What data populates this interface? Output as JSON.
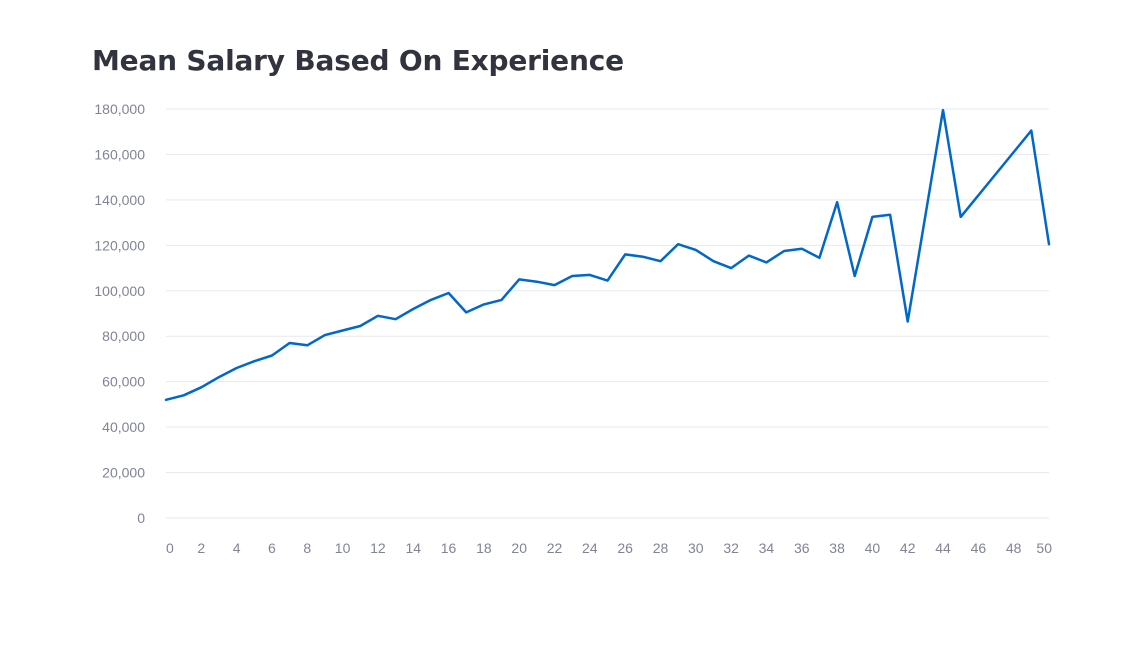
{
  "chart_data": {
    "type": "line",
    "title": "Mean Salary Based On Experience",
    "xlabel": "",
    "ylabel": "",
    "xlim": [
      0,
      50
    ],
    "ylim": [
      0,
      180000
    ],
    "grid": true,
    "legend": "none",
    "x_ticks": [
      0,
      2,
      4,
      6,
      8,
      10,
      12,
      14,
      16,
      18,
      20,
      22,
      24,
      26,
      28,
      30,
      32,
      34,
      36,
      38,
      40,
      42,
      44,
      46,
      48,
      50
    ],
    "y_ticks": [
      0,
      20000,
      40000,
      60000,
      80000,
      100000,
      120000,
      140000,
      160000,
      180000
    ],
    "y_tick_labels": [
      "0",
      "20,000",
      "40,000",
      "60,000",
      "80,000",
      "100,000",
      "120,000",
      "140,000",
      "160,000",
      "180,000"
    ],
    "series": [
      {
        "color": "#0068c9",
        "x": [
          0,
          1,
          2,
          3,
          4,
          5,
          6,
          7,
          8,
          9,
          10,
          11,
          12,
          13,
          14,
          15,
          16,
          17,
          18,
          19,
          20,
          21,
          22,
          23,
          24,
          25,
          26,
          27,
          28,
          29,
          30,
          31,
          32,
          33,
          34,
          35,
          36,
          37,
          38,
          39,
          40,
          41,
          42,
          44,
          45,
          49,
          50
        ],
        "values": [
          52000,
          54000,
          57500,
          62000,
          66000,
          69000,
          71500,
          77000,
          76000,
          80500,
          82500,
          84500,
          89000,
          87500,
          92000,
          96000,
          99000,
          90500,
          94000,
          96000,
          105000,
          104000,
          102500,
          106500,
          107000,
          104500,
          116000,
          115000,
          113000,
          120500,
          118000,
          113000,
          110000,
          115500,
          112500,
          117500,
          118500,
          114500,
          139000,
          106500,
          132500,
          133500,
          86500,
          179500,
          132500,
          170500,
          120500
        ]
      }
    ]
  }
}
